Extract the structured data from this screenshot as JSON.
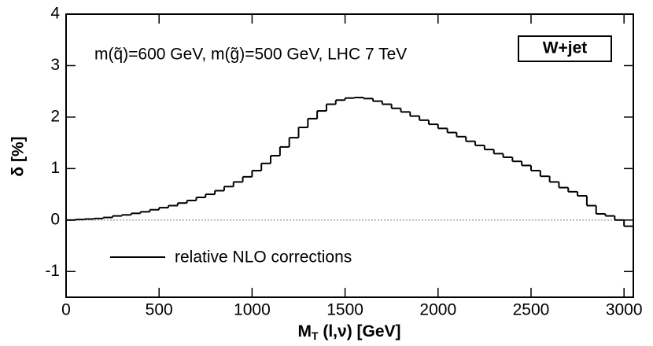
{
  "chart_data": {
    "type": "histogram",
    "annotation": "m(q̃)=600 GeV, m(g̃)=500 GeV, LHC 7 TeV",
    "box_label": "W+jet",
    "ylabel": "δ [%]",
    "xlabel": {
      "main": "M",
      "sub": "T",
      "rest": " (l,ν) [GeV]"
    },
    "bins": [
      0,
      50,
      100,
      150,
      200,
      250,
      300,
      350,
      400,
      450,
      500,
      550,
      600,
      650,
      700,
      750,
      800,
      850,
      900,
      950,
      1000,
      1050,
      1100,
      1150,
      1200,
      1250,
      1300,
      1350,
      1400,
      1450,
      1500,
      1550,
      1600,
      1650,
      1700,
      1750,
      1800,
      1850,
      1900,
      1950,
      2000,
      2050,
      2100,
      2150,
      2200,
      2250,
      2300,
      2350,
      2400,
      2450,
      2500,
      2550,
      2600,
      2650,
      2700,
      2750,
      2800,
      2850,
      2900,
      2950,
      3000,
      3050
    ],
    "series": [
      {
        "name": "relative NLO corrections",
        "color": "#000000",
        "values": [
          0,
          0.01,
          0.02,
          0.03,
          0.05,
          0.08,
          0.1,
          0.13,
          0.16,
          0.2,
          0.24,
          0.28,
          0.33,
          0.38,
          0.44,
          0.5,
          0.57,
          0.65,
          0.74,
          0.84,
          0.96,
          1.1,
          1.25,
          1.42,
          1.6,
          1.8,
          1.97,
          2.12,
          2.25,
          2.33,
          2.37,
          2.38,
          2.36,
          2.31,
          2.25,
          2.17,
          2.1,
          2.02,
          1.94,
          1.86,
          1.78,
          1.7,
          1.62,
          1.53,
          1.45,
          1.37,
          1.29,
          1.22,
          1.14,
          1.06,
          0.96,
          0.85,
          0.74,
          0.63,
          0.55,
          0.47,
          0.28,
          0.12,
          0.08,
          0.0,
          -0.12
        ]
      }
    ],
    "xlim": [
      0,
      3050
    ],
    "ylim": [
      -1.5,
      4
    ],
    "xticks": [
      0,
      500,
      1000,
      1500,
      2000,
      2500,
      3000
    ],
    "yticks": [
      -1,
      0,
      1,
      2,
      3,
      4
    ],
    "zero_line": true
  }
}
